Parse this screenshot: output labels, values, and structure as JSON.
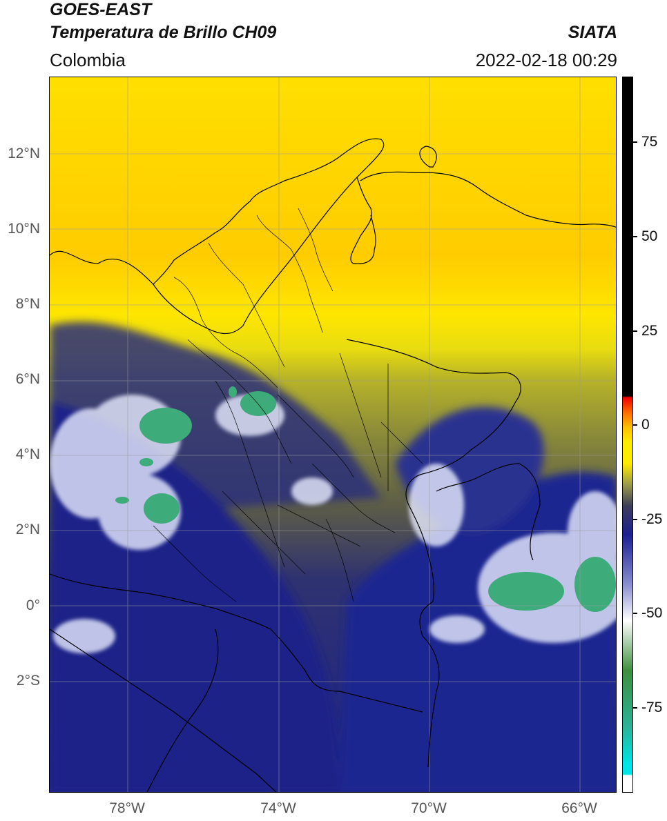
{
  "header": {
    "satellite": "GOES-EAST",
    "product": "Temperatura de Brillo CH09",
    "brand": "SIATA",
    "region": "Colombia",
    "timestamp": "2022-02-18 00:29"
  },
  "map": {
    "latitude_labels": [
      "12°N",
      "10°N",
      "8°N",
      "6°N",
      "4°N",
      "2°N",
      "0°",
      "2°S"
    ],
    "longitude_labels": [
      "78°W",
      "74°W",
      "70°W",
      "66°W"
    ],
    "gridlines": true
  },
  "colorbar": {
    "tick_labels": [
      "75",
      "50",
      "25",
      "0",
      "-25",
      "-50",
      "-75"
    ],
    "gradient_colors": [
      "#ffffff",
      "#00e5e5",
      "#2bb39a",
      "#3d8f3d",
      "#ffffff",
      "#8a8fd0",
      "#1a2090",
      "#3d3d5a",
      "#9a9a4a",
      "#ffeb00",
      "#ffc000",
      "#ff7000",
      "#ee0000",
      "#000000"
    ]
  }
}
